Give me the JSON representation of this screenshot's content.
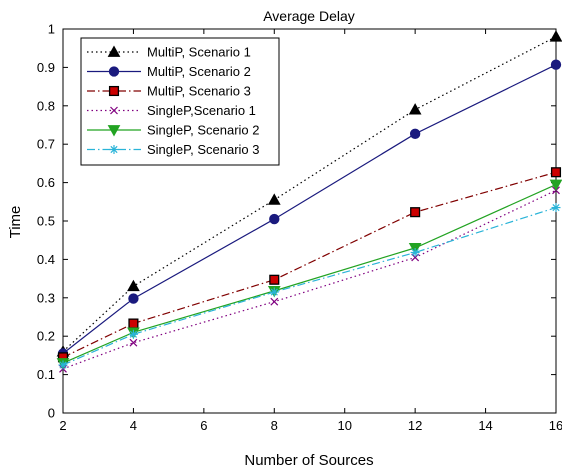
{
  "chart_data": {
    "type": "line",
    "title": "Average Delay",
    "xlabel": "Number of Sources",
    "ylabel": "Time",
    "x": [
      2,
      4,
      8,
      12,
      16
    ],
    "xlim": [
      2,
      16
    ],
    "ylim": [
      0,
      1
    ],
    "xticks": [
      2,
      4,
      6,
      8,
      10,
      12,
      14,
      16
    ],
    "yticks": [
      0,
      0.1,
      0.2,
      0.3,
      0.4,
      0.5,
      0.6,
      0.7,
      0.8,
      0.9,
      1
    ],
    "xtick_labels": [
      "2",
      "4",
      "6",
      "8",
      "10",
      "12",
      "14",
      "16"
    ],
    "ytick_labels": [
      "0",
      "0.1",
      "0.2",
      "0.3",
      "0.4",
      "0.5",
      "0.6",
      "0.7",
      "0.8",
      "0.9",
      "1"
    ],
    "grid": false,
    "legend_position": "top-left",
    "series": [
      {
        "name": "MultiP, Scenario 1",
        "values": [
          0.16,
          0.33,
          0.555,
          0.79,
          0.98
        ],
        "color": "#000000",
        "line_style": "dotted",
        "marker": "triangle-up",
        "marker_fill": "#000000"
      },
      {
        "name": "MultiP, Scenario 2",
        "values": [
          0.155,
          0.298,
          0.505,
          0.727,
          0.907
        ],
        "color": "#1a1a7e",
        "line_style": "solid",
        "marker": "circle",
        "marker_fill": "#1a1a7e"
      },
      {
        "name": "MultiP, Scenario 3",
        "values": [
          0.145,
          0.233,
          0.347,
          0.523,
          0.627
        ],
        "color": "#800000",
        "line_style": "dashdot",
        "marker": "square",
        "marker_fill": "#cc0000"
      },
      {
        "name": "SingleP,Scenario 1",
        "values": [
          0.115,
          0.183,
          0.29,
          0.405,
          0.58
        ],
        "color": "#800080",
        "line_style": "dotted",
        "marker": "x",
        "marker_fill": "none"
      },
      {
        "name": "SingleP, Scenario 2",
        "values": [
          0.13,
          0.21,
          0.318,
          0.43,
          0.595
        ],
        "color": "#22a322",
        "line_style": "solid",
        "marker": "triangle-down",
        "marker_fill": "#22a322"
      },
      {
        "name": "SingleP, Scenario 3",
        "values": [
          0.125,
          0.205,
          0.315,
          0.418,
          0.535
        ],
        "color": "#2ab4d8",
        "line_style": "dashdot",
        "marker": "star",
        "marker_fill": "#2ab4d8"
      }
    ]
  }
}
